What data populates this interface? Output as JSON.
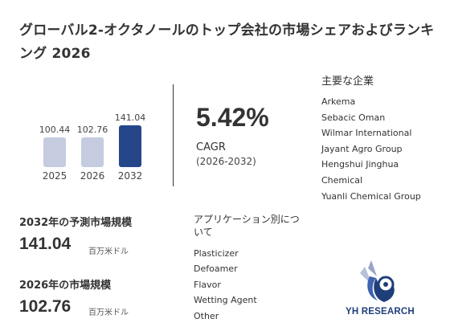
{
  "title": "グローバル2-オクタノールのトップ会社の市場シェアおよびランキング 2026",
  "chart_data": {
    "type": "bar",
    "categories": [
      "2025",
      "2026",
      "2032"
    ],
    "values": [
      100.44,
      102.76,
      141.04
    ],
    "value_labels": [
      "100.44",
      "102.76",
      "141.04"
    ],
    "colors": [
      "#c5cce0",
      "#c5cce0",
      "#26468a"
    ]
  },
  "cagr": {
    "value": "5.42%",
    "label": "CAGR",
    "period": "(2026-2032)"
  },
  "companies": {
    "title": "主要な企業",
    "items": [
      "Arkema",
      "Sebacic Oman",
      "Wilmar International",
      "Jayant Agro Group",
      "Hengshui Jinghua",
      "Chemical",
      "Yuanli Chemical Group"
    ]
  },
  "stats": {
    "forecast_label": "2032年の予測市場規模",
    "forecast_value": "141.04",
    "forecast_unit": "百万米ドル",
    "current_label": "2026年の市場規模",
    "current_value": "102.76",
    "current_unit": "百万米ドル"
  },
  "applications": {
    "title": "アプリケーション別について",
    "items": [
      "Plasticizer",
      "Defoamer",
      "Flavor",
      "Wetting Agent",
      "Other"
    ]
  },
  "logo": {
    "text": "YH RESEARCH"
  }
}
